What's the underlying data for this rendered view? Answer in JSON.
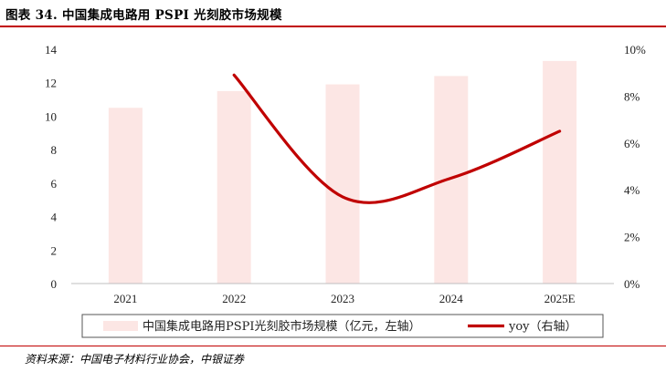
{
  "title": "图表 34. 中国集成电路用 PSPI 光刻胶市场规模",
  "source": "资料来源：中国电子材料行业协会，中银证券",
  "colors": {
    "bar": "#fce6e4",
    "line": "#c00000",
    "accent": "#c00000"
  },
  "chart_data": {
    "type": "bar",
    "categories": [
      "2021",
      "2022",
      "2023",
      "2024",
      "2025E"
    ],
    "series": [
      {
        "name": "中国集成电路用PSPI光刻胶市场规模（亿元，左轴）",
        "type": "bar",
        "axis": "left",
        "values": [
          10.5,
          11.5,
          11.9,
          12.4,
          13.3
        ]
      },
      {
        "name": "yoy（右轴）",
        "type": "line",
        "axis": "right",
        "smooth": true,
        "values": [
          null,
          8.9,
          3.7,
          4.5,
          6.5
        ]
      }
    ],
    "ylim_left": [
      0,
      14
    ],
    "yticks_left": [
      "0",
      "2",
      "4",
      "6",
      "8",
      "10",
      "12",
      "14"
    ],
    "ylim_right": [
      0,
      10
    ],
    "yticks_right": [
      "0%",
      "2%",
      "4%",
      "6%",
      "8%",
      "10%"
    ],
    "grid": false,
    "legend_position": "bottom"
  }
}
